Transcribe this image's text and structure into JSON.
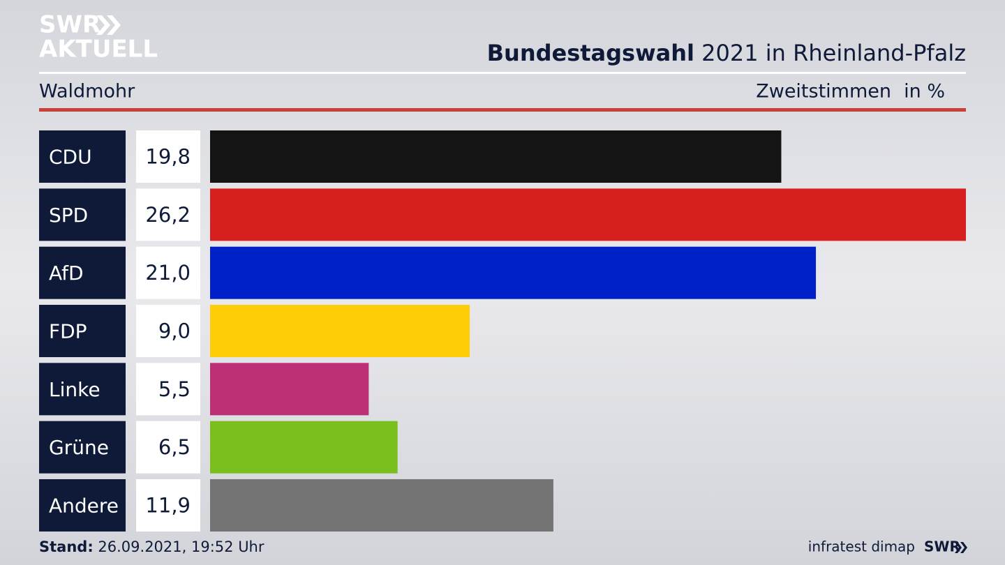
{
  "logo": {
    "line1": "SWR",
    "line2": "AKTUELL"
  },
  "chart_data": {
    "type": "bar",
    "orientation": "horizontal",
    "title_parts": [
      "Bundestagswahl",
      "2021 in Rheinland-Pfalz"
    ],
    "region": "Waldmohr",
    "measure": "Zweitstimmen",
    "unit": "in %",
    "categories": [
      "CDU",
      "SPD",
      "AfD",
      "FDP",
      "Linke",
      "Grüne",
      "Andere"
    ],
    "values": [
      19.8,
      26.2,
      21.0,
      9.0,
      5.5,
      6.5,
      11.9
    ],
    "value_labels": [
      "19,8",
      "26,2",
      "21,0",
      "9,0",
      "5,5",
      "6,5",
      "11,9"
    ],
    "colors": [
      "#141414",
      "#d62020",
      "#0021c8",
      "#ffcc08",
      "#bd3075",
      "#7abf1e",
      "#737373"
    ]
  },
  "footer": {
    "stand_label": "Stand:",
    "stand_value": "26.09.2021, 19:52 Uhr",
    "source": "infratest dimap",
    "brand": "SWR"
  }
}
